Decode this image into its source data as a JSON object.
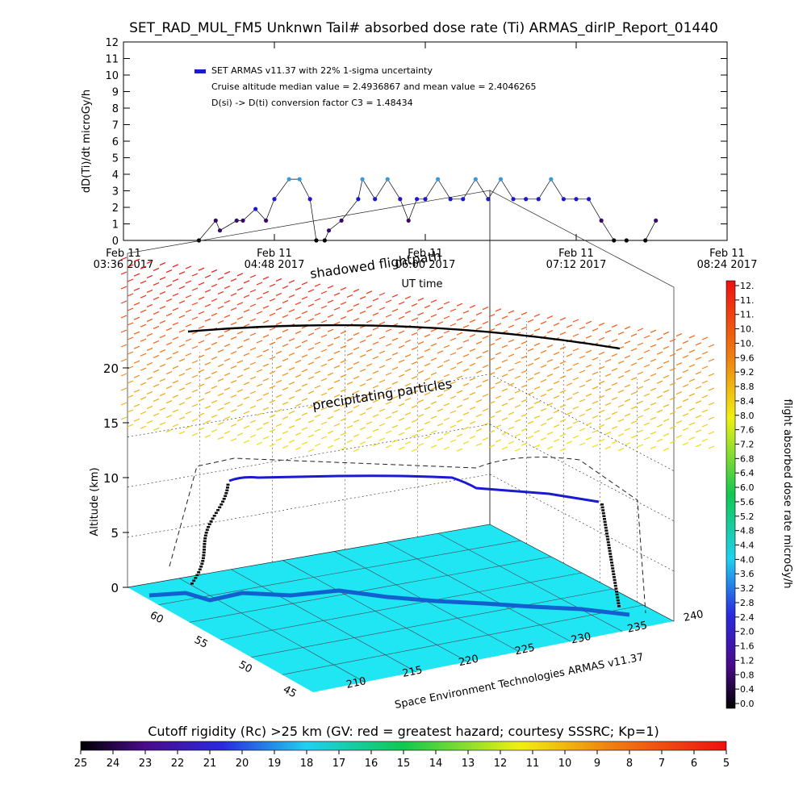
{
  "title": "SET_RAD_MUL_FM5 Unknwn Tail#  absorbed dose rate (Ti) ARMAS_dirIP_Report_01440",
  "top_chart": {
    "ylabel": "dD(Ti)/dt microGy/h",
    "xlabel": "UT time",
    "legend": [
      "SET ARMAS v11.37 with 22% 1-sigma uncertainty",
      "Cruise altitude median value = 2.4936867 and mean value = 2.4046265",
      "D(si) -> D(ti) conversion factor C3 = 1.48434"
    ],
    "y_ticks": [
      "0",
      "1",
      "2",
      "3",
      "4",
      "5",
      "6",
      "7",
      "8",
      "9",
      "10",
      "11",
      "12"
    ],
    "x_ticks": [
      {
        "l1": "Feb 11",
        "l2": "03:36 2017"
      },
      {
        "l1": "Feb 11",
        "l2": "04:48 2017"
      },
      {
        "l1": "Feb 11",
        "l2": "06:00 2017"
      },
      {
        "l1": "Feb 11",
        "l2": "07:12 2017"
      },
      {
        "l1": "Feb 11",
        "l2": "08:24 2017"
      }
    ]
  },
  "scene": {
    "ylabel": "Altitude (km)",
    "alt_ticks": [
      "0",
      "5",
      "10",
      "15",
      "20"
    ],
    "lat_ticks": [
      "60",
      "55",
      "50",
      "45"
    ],
    "lon_ticks": [
      "210",
      "215",
      "220",
      "225",
      "230",
      "235",
      "240"
    ],
    "annot_shadow": "shadowed flightpath",
    "annot_precip": "precipitating particles",
    "credit": "Space Environment Technologies ARMAS v11.37"
  },
  "colorbar_right": {
    "label": "flight absorbed dose rate microGy/h",
    "ticks": [
      "12.",
      "11.",
      "11.",
      "10.",
      "10.",
      "9.6",
      "9.2",
      "8.8",
      "8.4",
      "8.0",
      "7.6",
      "7.2",
      "6.8",
      "6.4",
      "6.0",
      "5.6",
      "5.2",
      "4.8",
      "4.4",
      "4.0",
      "3.6",
      "3.2",
      "2.8",
      "2.4",
      "2.0",
      "1.6",
      "1.2",
      "0.8",
      "0.4",
      "0.0"
    ]
  },
  "colorbar_bottom": {
    "label": "Cutoff rigidity (Rc) >25 km (GV: red = greatest hazard; courtesy SSSRC; Kp=1)",
    "ticks": [
      "25",
      "24",
      "23",
      "22",
      "21",
      "20",
      "19",
      "18",
      "17",
      "16",
      "15",
      "14",
      "13",
      "12",
      "11",
      "10",
      "9",
      "8",
      "7",
      "6",
      "5"
    ]
  },
  "colors": {
    "ocean": "#1fe6f2",
    "coast": "#1060d0",
    "flight_high": "#1a1ad0",
    "flight_mid": "#3a0a6a",
    "flight_low": "#000000",
    "peak": "#3a9ad8"
  },
  "chart_data": [
    {
      "type": "line",
      "title": "SET_RAD_MUL_FM5 Unknwn Tail#  absorbed dose rate (Ti) ARMAS_dirIP_Report_01440",
      "xlabel": "UT time",
      "ylabel": "dD(Ti)/dt microGy/h",
      "ylim": [
        0,
        12
      ],
      "xlim": [
        "2017-02-11 03:36",
        "2017-02-11 08:24"
      ],
      "series": [
        {
          "name": "SET ARMAS v11.37 with 22% 1-sigma uncertainty",
          "x": [
            "2017-02-11 04:12",
            "2017-02-11 04:20",
            "2017-02-11 04:22",
            "2017-02-11 04:30",
            "2017-02-11 04:33",
            "2017-02-11 04:39",
            "2017-02-11 04:44",
            "2017-02-11 04:48",
            "2017-02-11 04:55",
            "2017-02-11 05:00",
            "2017-02-11 05:05",
            "2017-02-11 05:08",
            "2017-02-11 05:12",
            "2017-02-11 05:14",
            "2017-02-11 05:20",
            "2017-02-11 05:28",
            "2017-02-11 05:30",
            "2017-02-11 05:36",
            "2017-02-11 05:42",
            "2017-02-11 05:48",
            "2017-02-11 05:52",
            "2017-02-11 05:56",
            "2017-02-11 06:00",
            "2017-02-11 06:06",
            "2017-02-11 06:12",
            "2017-02-11 06:18",
            "2017-02-11 06:24",
            "2017-02-11 06:30",
            "2017-02-11 06:36",
            "2017-02-11 06:42",
            "2017-02-11 06:48",
            "2017-02-11 06:54",
            "2017-02-11 07:00",
            "2017-02-11 07:06",
            "2017-02-11 07:12",
            "2017-02-11 07:18",
            "2017-02-11 07:24",
            "2017-02-11 07:30",
            "2017-02-11 07:36",
            "2017-02-11 07:45",
            "2017-02-11 07:50"
          ],
          "y": [
            0,
            1.2,
            0.6,
            1.2,
            1.2,
            1.9,
            1.2,
            2.5,
            3.7,
            3.7,
            2.5,
            0,
            0,
            0.6,
            1.2,
            2.5,
            3.7,
            2.5,
            3.7,
            2.5,
            1.2,
            2.5,
            2.5,
            3.7,
            2.5,
            2.5,
            3.7,
            2.5,
            3.7,
            2.5,
            2.5,
            2.5,
            3.7,
            2.5,
            2.5,
            2.5,
            1.2,
            0,
            0,
            0,
            1.2
          ]
        }
      ]
    },
    {
      "type": "scatter",
      "title": "",
      "xlabel": "Space Environment Technologies ARMAS v11.37",
      "ylabel": "Altitude (km)",
      "zlim": [
        0,
        20
      ],
      "lon_range": [
        210,
        240
      ],
      "lat_range": [
        45,
        60
      ],
      "series": [
        {
          "name": "flight track",
          "lon": [
            210,
            211,
            213,
            216,
            220,
            224,
            228,
            231,
            233,
            235,
            236
          ],
          "lat": [
            60,
            60,
            59.6,
            59.2,
            58.8,
            58.2,
            57.6,
            57.0,
            56.4,
            55.8,
            55.5
          ],
          "alt_km": [
            0,
            3,
            9.5,
            10,
            10,
            10,
            9.8,
            9.1,
            9.0,
            6,
            0
          ]
        }
      ]
    }
  ]
}
